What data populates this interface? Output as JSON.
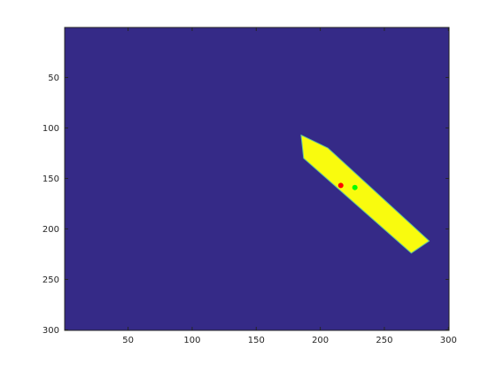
{
  "chart_data": {
    "type": "heatmap",
    "title": "",
    "xlabel": "",
    "ylabel": "",
    "xlim": [
      0.5,
      300.5
    ],
    "ylim": [
      0.5,
      300.5
    ],
    "y_direction": "reversed",
    "grid": false,
    "x_ticks": [
      {
        "value": 50,
        "label": "50"
      },
      {
        "value": 100,
        "label": "100"
      },
      {
        "value": 150,
        "label": "150"
      },
      {
        "value": 200,
        "label": "200"
      },
      {
        "value": 250,
        "label": "250"
      },
      {
        "value": 300,
        "label": "300"
      }
    ],
    "y_ticks": [
      {
        "value": 50,
        "label": "50"
      },
      {
        "value": 100,
        "label": "100"
      },
      {
        "value": 150,
        "label": "150"
      },
      {
        "value": 200,
        "label": "200"
      },
      {
        "value": 250,
        "label": "250"
      },
      {
        "value": 300,
        "label": "300"
      }
    ],
    "background_color": "#352a87",
    "region": {
      "color": "#f9fb0e",
      "edge_color": "#5fbe9a",
      "polygon": [
        [
          185,
          107
        ],
        [
          206,
          120
        ],
        [
          285,
          212
        ],
        [
          271,
          224
        ],
        [
          187,
          130
        ]
      ]
    },
    "points": [
      {
        "x": 216,
        "y": 157,
        "color": "#ff0000"
      },
      {
        "x": 227,
        "y": 159,
        "color": "#00ff00"
      }
    ]
  }
}
